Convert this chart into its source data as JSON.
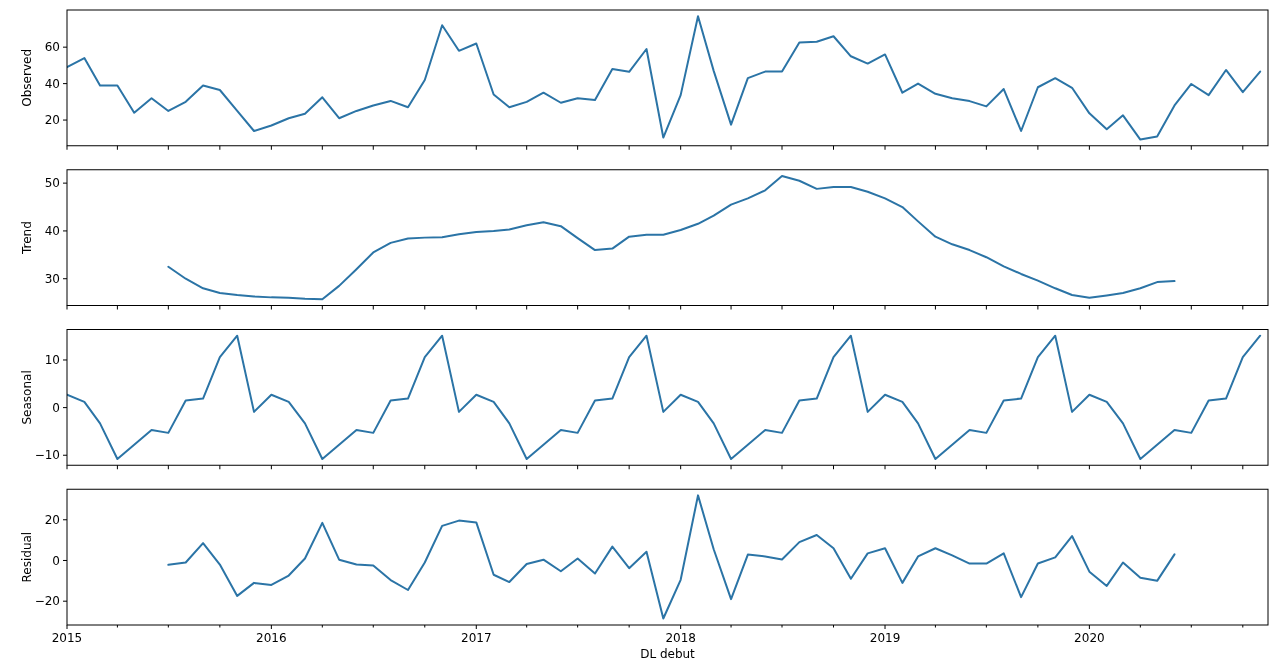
{
  "chart_data": [
    {
      "type": "line",
      "ylabel": "Observed",
      "tick_labels": "y",
      "x": [
        "2015-01",
        "2015-02",
        "2015-03",
        "2015-04",
        "2015-05",
        "2015-06",
        "2015-07",
        "2015-08",
        "2015-09",
        "2015-10",
        "2015-11",
        "2015-12",
        "2016-01",
        "2016-02",
        "2016-03",
        "2016-04",
        "2016-05",
        "2016-06",
        "2016-07",
        "2016-08",
        "2016-09",
        "2016-10",
        "2016-11",
        "2016-12",
        "2017-01",
        "2017-02",
        "2017-03",
        "2017-04",
        "2017-05",
        "2017-06",
        "2017-07",
        "2017-08",
        "2017-09",
        "2017-10",
        "2017-11",
        "2017-12",
        "2018-01",
        "2018-02",
        "2018-03",
        "2018-04",
        "2018-05",
        "2018-06",
        "2018-07",
        "2018-08",
        "2018-09",
        "2018-10",
        "2018-11",
        "2018-12",
        "2019-01",
        "2019-02",
        "2019-03",
        "2019-04",
        "2019-05",
        "2019-06",
        "2019-07",
        "2019-08",
        "2019-09",
        "2019-10",
        "2019-11",
        "2019-12",
        "2020-01",
        "2020-02",
        "2020-03",
        "2020-04",
        "2020-05",
        "2020-06",
        "2020-07",
        "2020-08",
        "2020-09",
        "2020-10",
        "2020-11"
      ],
      "series": [
        {
          "color": "#2b74a6",
          "values": [
            49,
            54,
            39,
            39,
            24,
            32,
            25,
            30,
            39,
            36.5,
            25,
            14,
            17,
            21,
            23.5,
            32.5,
            21,
            25,
            28,
            30.5,
            27,
            42,
            72,
            58,
            62,
            34,
            27,
            30,
            35,
            29.5,
            32,
            31,
            48,
            46.5,
            59,
            10.4,
            33.7,
            77,
            47,
            17.5,
            43,
            46.6,
            46.6,
            62.6,
            63,
            66,
            55,
            51,
            56,
            35,
            40,
            34.4,
            32,
            30.4,
            27.5,
            37,
            14,
            38,
            43,
            37.7,
            23.7,
            15,
            22.6,
            9.3,
            11,
            28,
            39.8,
            33.7,
            47.5,
            35.3,
            46.6
          ]
        }
      ],
      "xlim": [
        "2015-01-01",
        "2020-11-15"
      ],
      "xticks": [
        {
          "value": "2015-01-01",
          "label": null
        },
        {
          "value": "2015-04-01",
          "label": null
        },
        {
          "value": "2015-07-01",
          "label": null
        },
        {
          "value": "2015-10-01",
          "label": null
        },
        {
          "value": "2016-01-01",
          "label": null
        },
        {
          "value": "2016-04-01",
          "label": null
        },
        {
          "value": "2016-07-01",
          "label": null
        },
        {
          "value": "2016-10-01",
          "label": null
        },
        {
          "value": "2017-01-01",
          "label": null
        },
        {
          "value": "2017-04-01",
          "label": null
        },
        {
          "value": "2017-07-01",
          "label": null
        },
        {
          "value": "2017-10-01",
          "label": null
        },
        {
          "value": "2018-01-01",
          "label": null
        },
        {
          "value": "2018-04-01",
          "label": null
        },
        {
          "value": "2018-07-01",
          "label": null
        },
        {
          "value": "2018-10-01",
          "label": null
        },
        {
          "value": "2019-01-01",
          "label": null
        },
        {
          "value": "2019-04-01",
          "label": null
        },
        {
          "value": "2019-07-01",
          "label": null
        },
        {
          "value": "2019-10-01",
          "label": null
        },
        {
          "value": "2020-01-01",
          "label": null
        },
        {
          "value": "2020-04-01",
          "label": null
        },
        {
          "value": "2020-07-01",
          "label": null
        },
        {
          "value": "2020-10-01",
          "label": null
        }
      ],
      "ylim": [
        5.9,
        80.4
      ],
      "yticks": [
        20,
        40,
        60
      ]
    },
    {
      "type": "line",
      "ylabel": "Trend",
      "tick_labels": "y",
      "x": [
        "2015-07",
        "2015-08",
        "2015-09",
        "2015-10",
        "2015-11",
        "2015-12",
        "2016-01",
        "2016-02",
        "2016-03",
        "2016-04",
        "2016-05",
        "2016-06",
        "2016-07",
        "2016-08",
        "2016-09",
        "2016-10",
        "2016-11",
        "2016-12",
        "2017-01",
        "2017-02",
        "2017-03",
        "2017-04",
        "2017-05",
        "2017-06",
        "2017-07",
        "2017-08",
        "2017-09",
        "2017-10",
        "2017-11",
        "2017-12",
        "2018-01",
        "2018-02",
        "2018-03",
        "2018-04",
        "2018-05",
        "2018-06",
        "2018-07",
        "2018-08",
        "2018-09",
        "2018-10",
        "2018-11",
        "2018-12",
        "2019-01",
        "2019-02",
        "2019-03",
        "2019-04",
        "2019-05",
        "2019-06",
        "2019-07",
        "2019-08",
        "2019-09",
        "2019-10",
        "2019-11",
        "2019-12",
        "2020-01",
        "2020-02",
        "2020-03",
        "2020-04",
        "2020-05",
        "2020-06"
      ],
      "series": [
        {
          "color": "#2b74a6",
          "values": [
            32.5,
            30,
            28,
            27,
            26.6,
            26.3,
            26.1,
            26,
            25.8,
            25.7,
            28.5,
            32,
            35.5,
            37.5,
            38.4,
            38.6,
            38.7,
            39.3,
            39.8,
            40,
            40.3,
            41.2,
            41.8,
            41,
            38.5,
            36,
            36.3,
            38.8,
            39.2,
            39.2,
            40.2,
            41.5,
            43.2,
            45.5,
            46.8,
            48.5,
            51.5,
            50.5,
            48.8,
            49.2,
            49.2,
            48.2,
            46.8,
            45,
            42,
            38.8,
            37.2,
            36,
            34.5,
            32.6,
            31,
            29.6,
            28,
            26.6,
            26,
            26.5,
            27,
            28,
            29.3,
            29.5
          ]
        }
      ],
      "xlim": [
        "2015-01-01",
        "2020-11-15"
      ],
      "xticks": [
        {
          "value": "2015-01-01",
          "label": null
        },
        {
          "value": "2015-04-01",
          "label": null
        },
        {
          "value": "2015-07-01",
          "label": null
        },
        {
          "value": "2015-10-01",
          "label": null
        },
        {
          "value": "2016-01-01",
          "label": null
        },
        {
          "value": "2016-04-01",
          "label": null
        },
        {
          "value": "2016-07-01",
          "label": null
        },
        {
          "value": "2016-10-01",
          "label": null
        },
        {
          "value": "2017-01-01",
          "label": null
        },
        {
          "value": "2017-04-01",
          "label": null
        },
        {
          "value": "2017-07-01",
          "label": null
        },
        {
          "value": "2017-10-01",
          "label": null
        },
        {
          "value": "2018-01-01",
          "label": null
        },
        {
          "value": "2018-04-01",
          "label": null
        },
        {
          "value": "2018-07-01",
          "label": null
        },
        {
          "value": "2018-10-01",
          "label": null
        },
        {
          "value": "2019-01-01",
          "label": null
        },
        {
          "value": "2019-04-01",
          "label": null
        },
        {
          "value": "2019-07-01",
          "label": null
        },
        {
          "value": "2019-10-01",
          "label": null
        },
        {
          "value": "2020-01-01",
          "label": null
        },
        {
          "value": "2020-04-01",
          "label": null
        },
        {
          "value": "2020-07-01",
          "label": null
        },
        {
          "value": "2020-10-01",
          "label": null
        }
      ],
      "ylim": [
        24.4,
        52.8
      ],
      "yticks": [
        30,
        40,
        50
      ]
    },
    {
      "type": "line",
      "ylabel": "Seasonal",
      "tick_labels": "y",
      "x": [
        "2015-01",
        "2015-02",
        "2015-03",
        "2015-04",
        "2015-05",
        "2015-06",
        "2015-07",
        "2015-08",
        "2015-09",
        "2015-10",
        "2015-11",
        "2015-12",
        "2016-01",
        "2016-02",
        "2016-03",
        "2016-04",
        "2016-05",
        "2016-06",
        "2016-07",
        "2016-08",
        "2016-09",
        "2016-10",
        "2016-11",
        "2016-12",
        "2017-01",
        "2017-02",
        "2017-03",
        "2017-04",
        "2017-05",
        "2017-06",
        "2017-07",
        "2017-08",
        "2017-09",
        "2017-10",
        "2017-11",
        "2017-12",
        "2018-01",
        "2018-02",
        "2018-03",
        "2018-04",
        "2018-05",
        "2018-06",
        "2018-07",
        "2018-08",
        "2018-09",
        "2018-10",
        "2018-11",
        "2018-12",
        "2019-01",
        "2019-02",
        "2019-03",
        "2019-04",
        "2019-05",
        "2019-06",
        "2019-07",
        "2019-08",
        "2019-09",
        "2019-10",
        "2019-11",
        "2019-12",
        "2020-01",
        "2020-02",
        "2020-03",
        "2020-04",
        "2020-05",
        "2020-06",
        "2020-07",
        "2020-08",
        "2020-09",
        "2020-10",
        "2020-11"
      ],
      "series": [
        {
          "color": "#2b74a6",
          "values": [
            2.7,
            1.2,
            -3.3,
            -10.8,
            -7.8,
            -4.7,
            -5.3,
            1.5,
            1.9,
            10.6,
            15.1,
            -0.9,
            2.7,
            1.2,
            -3.3,
            -10.8,
            -7.8,
            -4.7,
            -5.3,
            1.5,
            1.9,
            10.6,
            15.1,
            -0.9,
            2.7,
            1.2,
            -3.3,
            -10.8,
            -7.8,
            -4.7,
            -5.3,
            1.5,
            1.9,
            10.6,
            15.1,
            -0.9,
            2.7,
            1.2,
            -3.3,
            -10.8,
            -7.8,
            -4.7,
            -5.3,
            1.5,
            1.9,
            10.6,
            15.1,
            -0.9,
            2.7,
            1.2,
            -3.3,
            -10.8,
            -7.8,
            -4.7,
            -5.3,
            1.5,
            1.9,
            10.6,
            15.1,
            -0.9,
            2.7,
            1.2,
            -3.3,
            -10.8,
            -7.8,
            -4.7,
            -5.3,
            1.5,
            1.9,
            10.6,
            15.1
          ]
        }
      ],
      "xlim": [
        "2015-01-01",
        "2020-11-15"
      ],
      "xticks": [
        {
          "value": "2015-01-01",
          "label": null
        },
        {
          "value": "2015-04-01",
          "label": null
        },
        {
          "value": "2015-07-01",
          "label": null
        },
        {
          "value": "2015-10-01",
          "label": null
        },
        {
          "value": "2016-01-01",
          "label": null
        },
        {
          "value": "2016-04-01",
          "label": null
        },
        {
          "value": "2016-07-01",
          "label": null
        },
        {
          "value": "2016-10-01",
          "label": null
        },
        {
          "value": "2017-01-01",
          "label": null
        },
        {
          "value": "2017-04-01",
          "label": null
        },
        {
          "value": "2017-07-01",
          "label": null
        },
        {
          "value": "2017-10-01",
          "label": null
        },
        {
          "value": "2018-01-01",
          "label": null
        },
        {
          "value": "2018-04-01",
          "label": null
        },
        {
          "value": "2018-07-01",
          "label": null
        },
        {
          "value": "2018-10-01",
          "label": null
        },
        {
          "value": "2019-01-01",
          "label": null
        },
        {
          "value": "2019-04-01",
          "label": null
        },
        {
          "value": "2019-07-01",
          "label": null
        },
        {
          "value": "2019-10-01",
          "label": null
        },
        {
          "value": "2020-01-01",
          "label": null
        },
        {
          "value": "2020-04-01",
          "label": null
        },
        {
          "value": "2020-07-01",
          "label": null
        },
        {
          "value": "2020-10-01",
          "label": null
        }
      ],
      "ylim": [
        -12.1,
        16.4
      ],
      "yticks": [
        {
          "value": -10,
          "label": "−10"
        },
        0,
        10
      ]
    },
    {
      "type": "line",
      "ylabel": "Residual",
      "xlabel": "DL debut",
      "x": [
        "2015-07",
        "2015-08",
        "2015-09",
        "2015-10",
        "2015-11",
        "2015-12",
        "2016-01",
        "2016-02",
        "2016-03",
        "2016-04",
        "2016-05",
        "2016-06",
        "2016-07",
        "2016-08",
        "2016-09",
        "2016-10",
        "2016-11",
        "2016-12",
        "2017-01",
        "2017-02",
        "2017-03",
        "2017-04",
        "2017-05",
        "2017-06",
        "2017-07",
        "2017-08",
        "2017-09",
        "2017-10",
        "2017-11",
        "2017-12",
        "2018-01",
        "2018-02",
        "2018-03",
        "2018-04",
        "2018-05",
        "2018-06",
        "2018-07",
        "2018-08",
        "2018-09",
        "2018-10",
        "2018-11",
        "2018-12",
        "2019-01",
        "2019-02",
        "2019-03",
        "2019-04",
        "2019-05",
        "2019-06",
        "2019-07",
        "2019-08",
        "2019-09",
        "2019-10",
        "2019-11",
        "2019-12",
        "2020-01",
        "2020-02",
        "2020-03",
        "2020-04",
        "2020-05",
        "2020-06"
      ],
      "series": [
        {
          "color": "#2b74a6",
          "values": [
            -2.1,
            -1,
            8.5,
            -2,
            -17.4,
            -11,
            -12,
            -7.4,
            1,
            18.5,
            0.4,
            -2,
            -2.5,
            -9.6,
            -14.5,
            -1,
            17,
            19.6,
            18.7,
            -7,
            -10.6,
            -1.7,
            0.4,
            -5.3,
            1,
            -6.4,
            6.8,
            -3.8,
            4.3,
            -28.5,
            -9.5,
            32,
            5.5,
            -19,
            2.9,
            2,
            0.5,
            9,
            12.5,
            6,
            -9,
            3.5,
            6,
            -11,
            2,
            6,
            2.5,
            -1.5,
            -1.5,
            3.5,
            -18,
            -1.5,
            1.5,
            12,
            -5.5,
            -12.5,
            -1,
            -8.5,
            -10,
            3
          ]
        }
      ],
      "xlim": [
        "2015-01-01",
        "2020-11-15"
      ],
      "xticks": [
        {
          "value": "2015-01-01",
          "label": "2015"
        },
        {
          "value": "2015-04-01",
          "label": null
        },
        {
          "value": "2015-07-01",
          "label": null
        },
        {
          "value": "2015-10-01",
          "label": null
        },
        {
          "value": "2016-01-01",
          "label": "2016"
        },
        {
          "value": "2016-04-01",
          "label": null
        },
        {
          "value": "2016-07-01",
          "label": null
        },
        {
          "value": "2016-10-01",
          "label": null
        },
        {
          "value": "2017-01-01",
          "label": "2017"
        },
        {
          "value": "2017-04-01",
          "label": null
        },
        {
          "value": "2017-07-01",
          "label": null
        },
        {
          "value": "2017-10-01",
          "label": null
        },
        {
          "value": "2018-01-01",
          "label": "2018"
        },
        {
          "value": "2018-04-01",
          "label": null
        },
        {
          "value": "2018-07-01",
          "label": null
        },
        {
          "value": "2018-10-01",
          "label": null
        },
        {
          "value": "2019-01-01",
          "label": "2019"
        },
        {
          "value": "2019-04-01",
          "label": null
        },
        {
          "value": "2019-07-01",
          "label": null
        },
        {
          "value": "2019-10-01",
          "label": null
        },
        {
          "value": "2020-01-01",
          "label": "2020"
        },
        {
          "value": "2020-04-01",
          "label": null
        },
        {
          "value": "2020-07-01",
          "label": null
        },
        {
          "value": "2020-10-01",
          "label": null
        }
      ],
      "ylim": [
        -31.7,
        35
      ],
      "yticks": [
        {
          "value": -20,
          "label": "−20"
        },
        0,
        20
      ]
    }
  ]
}
